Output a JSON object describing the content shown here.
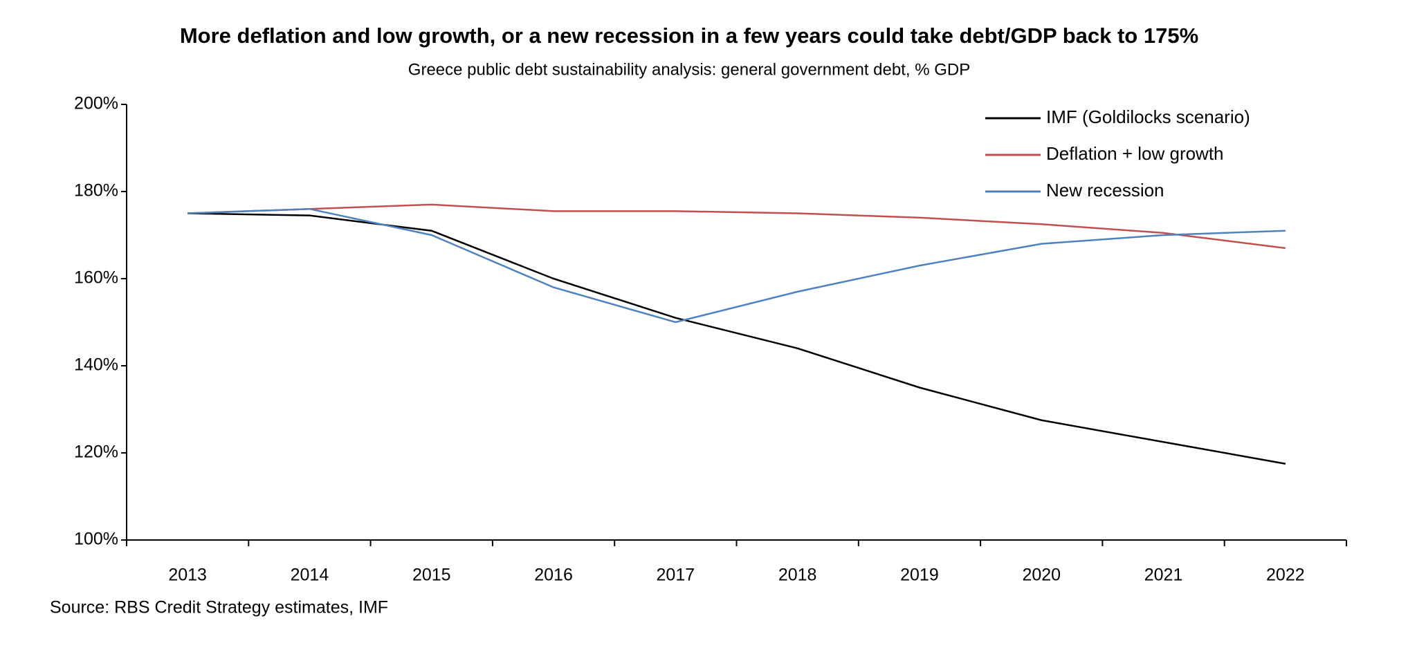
{
  "chart_data": {
    "type": "line",
    "title": "More deflation and low growth, or a new recession in a few years could take debt/GDP back to 175%",
    "subtitle": "Greece public debt sustainability analysis: general government debt, % GDP",
    "source": "Source: RBS Credit Strategy estimates, IMF",
    "categories": [
      "2013",
      "2014",
      "2015",
      "2016",
      "2017",
      "2018",
      "2019",
      "2020",
      "2021",
      "2022"
    ],
    "series": [
      {
        "name": "IMF (Goldilocks scenario)",
        "color": "#000000",
        "values": [
          175,
          174.5,
          171,
          160,
          151,
          144,
          135,
          127.5,
          122.5,
          117.5
        ]
      },
      {
        "name": "Deflation + low growth",
        "color": "#c0504d",
        "values": [
          175,
          176,
          177,
          175.5,
          175.5,
          175,
          174,
          172.5,
          170.5,
          167
        ]
      },
      {
        "name": "New recession",
        "color": "#4f81bd",
        "values": [
          175,
          176,
          170,
          158,
          150,
          157,
          163,
          168,
          170,
          171
        ]
      }
    ],
    "ylim": [
      100,
      200
    ],
    "yticks": [
      {
        "value": 100,
        "label": "100%"
      },
      {
        "value": 120,
        "label": "120%"
      },
      {
        "value": 140,
        "label": "140%"
      },
      {
        "value": 160,
        "label": "160%"
      },
      {
        "value": 180,
        "label": "180%"
      },
      {
        "value": 200,
        "label": "200%"
      }
    ],
    "legend": "top-right"
  }
}
